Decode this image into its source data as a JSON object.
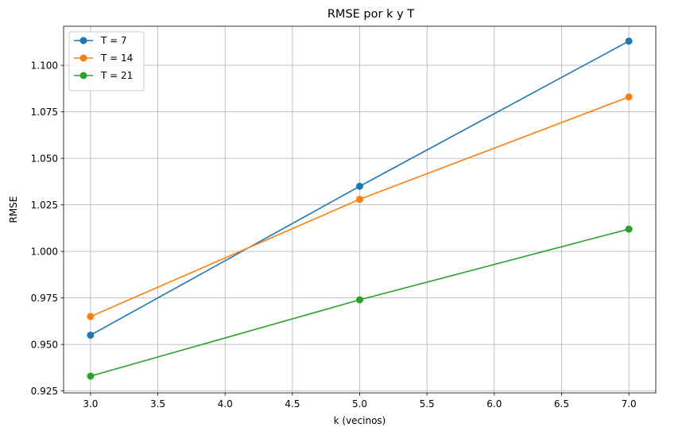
{
  "chart_data": {
    "type": "line",
    "title": "RMSE por k y T",
    "xlabel": "k (vecinos)",
    "ylabel": "RMSE",
    "x": [
      3,
      5,
      7
    ],
    "xlim": [
      2.8,
      7.2
    ],
    "ylim": [
      0.924,
      1.121
    ],
    "xticks": [
      3.0,
      3.5,
      4.0,
      4.5,
      5.0,
      5.5,
      6.0,
      6.5,
      7.0
    ],
    "xtick_labels": [
      "3.0",
      "3.5",
      "4.0",
      "4.5",
      "5.0",
      "5.5",
      "6.0",
      "6.5",
      "7.0"
    ],
    "yticks": [
      0.925,
      0.95,
      0.975,
      1.0,
      1.025,
      1.05,
      1.075,
      1.1
    ],
    "ytick_labels": [
      "0.925",
      "0.950",
      "0.975",
      "1.000",
      "1.025",
      "1.050",
      "1.075",
      "1.100"
    ],
    "grid": true,
    "legend_position": "top-left",
    "marker": "circle",
    "series": [
      {
        "name": "T = 7",
        "color": "#1f77b4",
        "values": [
          0.955,
          1.035,
          1.113
        ]
      },
      {
        "name": "T = 14",
        "color": "#ff7f0e",
        "values": [
          0.965,
          1.028,
          1.083
        ]
      },
      {
        "name": "T = 21",
        "color": "#2ca02c",
        "values": [
          0.933,
          0.974,
          1.012
        ]
      }
    ]
  }
}
